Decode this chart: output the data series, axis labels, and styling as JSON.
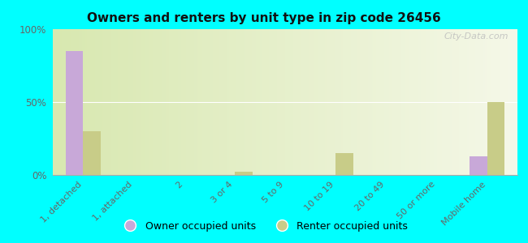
{
  "title": "Owners and renters by unit type in zip code 26456",
  "categories": [
    "1, detached",
    "1, attached",
    "2",
    "3 or 4",
    "5 to 9",
    "10 to 19",
    "20 to 49",
    "50 or more",
    "Mobile home"
  ],
  "owner_values": [
    85,
    0,
    0,
    0,
    0,
    0,
    0,
    0,
    13
  ],
  "renter_values": [
    30,
    0,
    0,
    2,
    0,
    15,
    0,
    0,
    50
  ],
  "owner_color": "#c8a8d8",
  "renter_color": "#c8cc88",
  "background_color": "#00ffff",
  "grad_top": "#d8e8b0",
  "grad_bottom": "#f5f8e8",
  "ylim": [
    0,
    100
  ],
  "yticks": [
    0,
    50,
    100
  ],
  "ytick_labels": [
    "0%",
    "50%",
    "100%"
  ],
  "bar_width": 0.35,
  "legend_owner": "Owner occupied units",
  "legend_renter": "Renter occupied units",
  "watermark": "City-Data.com"
}
